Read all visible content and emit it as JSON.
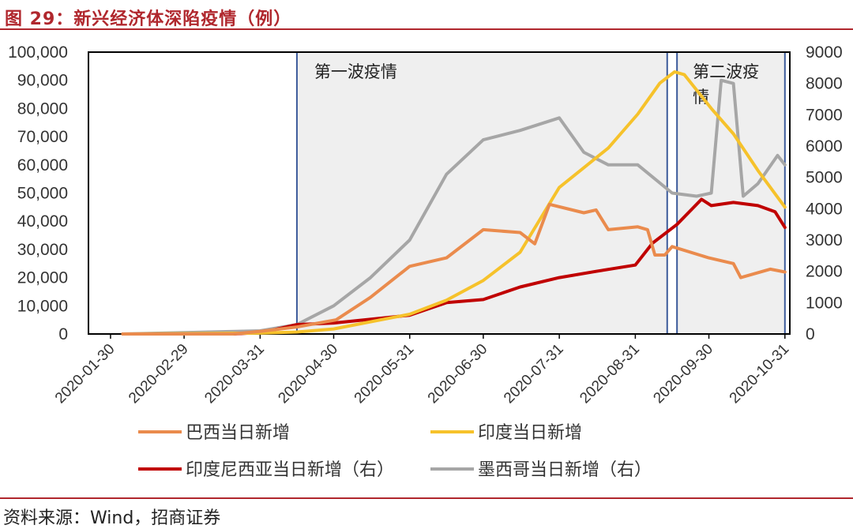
{
  "header": {
    "title": "图 29：新兴经济体深陷疫情（例）"
  },
  "footer": {
    "source": "资料来源：Wind，招商证券"
  },
  "colors": {
    "accent": "#b0272d",
    "box_border": "#3b5a9a",
    "box_fill": "#efefef"
  },
  "chart_data": {
    "type": "line",
    "title": "",
    "xlabel": "",
    "ylabel": "",
    "ylim_left": [
      0,
      100000
    ],
    "ylim_right": [
      0,
      9000
    ],
    "left_ticks": [
      "100,000",
      "90,000",
      "80,000",
      "70,000",
      "60,000",
      "50,000",
      "40,000",
      "30,000",
      "20,000",
      "10,000",
      "0"
    ],
    "right_ticks": [
      "9000",
      "8000",
      "7000",
      "6000",
      "5000",
      "4000",
      "3000",
      "2000",
      "1000",
      "0"
    ],
    "x_ticks": [
      "2020-01-30",
      "2020-02-29",
      "2020-03-31",
      "2020-04-30",
      "2020-05-31",
      "2020-06-30",
      "2020-07-31",
      "2020-08-31",
      "2020-09-30",
      "2020-10-31"
    ],
    "annotations": [
      {
        "label": "第一波疫情",
        "start": "2020-04-15",
        "end": "2020-09-13"
      },
      {
        "label": "第二波疫情",
        "start": "2020-09-17",
        "end": "2020-10-31"
      }
    ],
    "series": [
      {
        "name": "巴西当日新增",
        "axis": "left",
        "color": "#ea8b4d",
        "points": [
          [
            "2020-02-04",
            0
          ],
          [
            "2020-03-20",
            0
          ],
          [
            "2020-04-01",
            1000
          ],
          [
            "2020-04-15",
            2500
          ],
          [
            "2020-05-01",
            5000
          ],
          [
            "2020-05-15",
            13000
          ],
          [
            "2020-05-31",
            24000
          ],
          [
            "2020-06-15",
            27000
          ],
          [
            "2020-06-30",
            37000
          ],
          [
            "2020-07-15",
            36000
          ],
          [
            "2020-07-21",
            32000
          ],
          [
            "2020-07-27",
            46000
          ],
          [
            "2020-08-10",
            43000
          ],
          [
            "2020-08-15",
            44000
          ],
          [
            "2020-08-20",
            37000
          ],
          [
            "2020-09-01",
            38000
          ],
          [
            "2020-09-05",
            37000
          ],
          [
            "2020-09-08",
            28000
          ],
          [
            "2020-09-12",
            28000
          ],
          [
            "2020-09-15",
            31000
          ],
          [
            "2020-09-30",
            27000
          ],
          [
            "2020-10-10",
            25000
          ],
          [
            "2020-10-13",
            20000
          ],
          [
            "2020-10-25",
            23000
          ],
          [
            "2020-10-31",
            22000
          ]
        ]
      },
      {
        "name": "印度当日新增",
        "axis": "left",
        "color": "#f6c22b",
        "points": [
          [
            "2020-02-04",
            0
          ],
          [
            "2020-03-31",
            300
          ],
          [
            "2020-04-15",
            700
          ],
          [
            "2020-04-30",
            1800
          ],
          [
            "2020-05-31",
            7000
          ],
          [
            "2020-06-15",
            12000
          ],
          [
            "2020-06-30",
            19000
          ],
          [
            "2020-07-15",
            29000
          ],
          [
            "2020-07-31",
            52000
          ],
          [
            "2020-08-10",
            59000
          ],
          [
            "2020-08-20",
            66000
          ],
          [
            "2020-09-01",
            78000
          ],
          [
            "2020-09-10",
            89000
          ],
          [
            "2020-09-16",
            93000
          ],
          [
            "2020-09-20",
            92000
          ],
          [
            "2020-10-01",
            80000
          ],
          [
            "2020-10-10",
            71000
          ],
          [
            "2020-10-20",
            58000
          ],
          [
            "2020-10-31",
            45000
          ]
        ]
      },
      {
        "name": "印度尼西亚当日新增（右）",
        "axis": "right",
        "color": "#c00000",
        "points": [
          [
            "2020-02-04",
            0
          ],
          [
            "2020-03-20",
            0
          ],
          [
            "2020-04-01",
            50
          ],
          [
            "2020-04-15",
            300
          ],
          [
            "2020-04-30",
            350
          ],
          [
            "2020-05-31",
            600
          ],
          [
            "2020-06-15",
            1000
          ],
          [
            "2020-06-30",
            1100
          ],
          [
            "2020-07-15",
            1500
          ],
          [
            "2020-07-31",
            1800
          ],
          [
            "2020-08-15",
            2000
          ],
          [
            "2020-08-31",
            2200
          ],
          [
            "2020-09-07",
            2900
          ],
          [
            "2020-09-17",
            3500
          ],
          [
            "2020-09-27",
            4300
          ],
          [
            "2020-10-01",
            4100
          ],
          [
            "2020-10-10",
            4200
          ],
          [
            "2020-10-20",
            4100
          ],
          [
            "2020-10-27",
            3900
          ],
          [
            "2020-10-31",
            3400
          ]
        ]
      },
      {
        "name": "墨西哥当日新增（右）",
        "axis": "right",
        "color": "#a6a6a6",
        "points": [
          [
            "2020-02-04",
            0
          ],
          [
            "2020-03-31",
            100
          ],
          [
            "2020-04-15",
            300
          ],
          [
            "2020-04-30",
            900
          ],
          [
            "2020-05-15",
            1800
          ],
          [
            "2020-05-31",
            3000
          ],
          [
            "2020-06-15",
            5100
          ],
          [
            "2020-06-30",
            6200
          ],
          [
            "2020-07-15",
            6500
          ],
          [
            "2020-07-31",
            6900
          ],
          [
            "2020-08-10",
            5800
          ],
          [
            "2020-08-20",
            5400
          ],
          [
            "2020-09-01",
            5400
          ],
          [
            "2020-09-15",
            4500
          ],
          [
            "2020-09-25",
            4400
          ],
          [
            "2020-10-01",
            4500
          ],
          [
            "2020-10-05",
            8100
          ],
          [
            "2020-10-10",
            8000
          ],
          [
            "2020-10-14",
            4400
          ],
          [
            "2020-10-20",
            4800
          ],
          [
            "2020-10-28",
            5700
          ],
          [
            "2020-10-31",
            5400
          ]
        ]
      }
    ],
    "legend": {
      "placement": "bottom",
      "items": [
        "巴西当日新增",
        "印度当日新增",
        "印度尼西亚当日新增（右）",
        "墨西哥当日新增（右）"
      ]
    }
  }
}
